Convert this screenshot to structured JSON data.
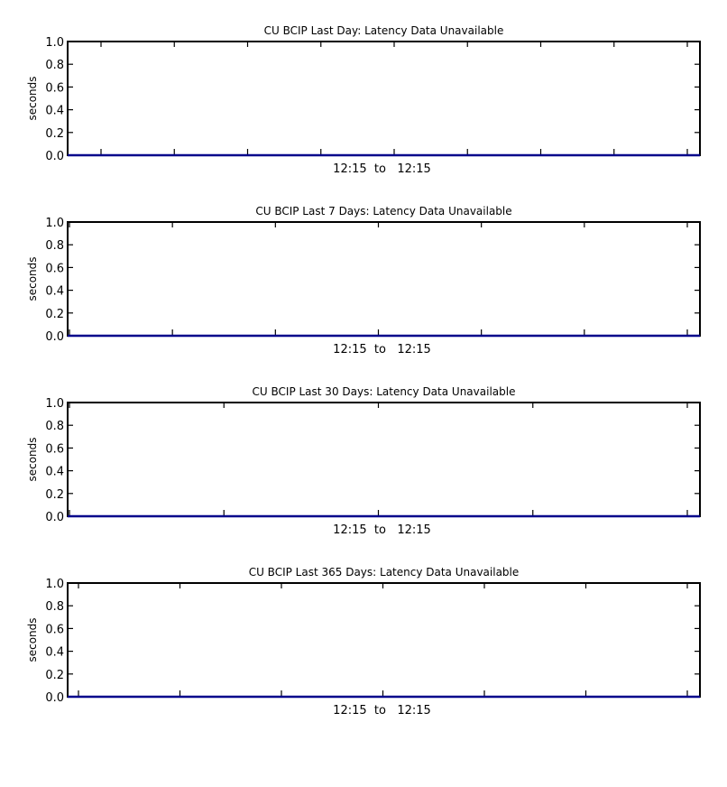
{
  "chart_data": [
    {
      "type": "line",
      "title": "CU BCIP Last Day: Latency Data Unavailable",
      "xlabel": "12:15  to   12:15",
      "ylabel": "seconds",
      "ylim": [
        0,
        1.0
      ],
      "y_ticks": [
        "0.0",
        "0.2",
        "0.4",
        "0.6",
        "0.8",
        "1.0"
      ],
      "x_major_ticks": 9,
      "grid": false,
      "series": [
        {
          "values": [
            0,
            0
          ]
        }
      ]
    },
    {
      "type": "line",
      "title": "CU BCIP Last 7 Days: Latency Data Unavailable",
      "xlabel": "12:15  to   12:15",
      "ylabel": "seconds",
      "ylim": [
        0,
        1.0
      ],
      "y_ticks": [
        "0.0",
        "0.2",
        "0.4",
        "0.6",
        "0.8",
        "1.0"
      ],
      "x_major_ticks": 7,
      "grid": false,
      "series": [
        {
          "values": [
            0,
            0
          ]
        }
      ]
    },
    {
      "type": "line",
      "title": "CU BCIP Last 30 Days: Latency Data Unavailable",
      "xlabel": "12:15  to   12:15",
      "ylabel": "seconds",
      "ylim": [
        0,
        1.0
      ],
      "y_ticks": [
        "0.0",
        "0.2",
        "0.4",
        "0.6",
        "0.8",
        "1.0"
      ],
      "x_major_ticks": 5,
      "grid": false,
      "series": [
        {
          "values": [
            0,
            0
          ]
        }
      ]
    },
    {
      "type": "line",
      "title": "CU BCIP Last 365 Days: Latency Data Unavailable",
      "xlabel": "12:15  to   12:15",
      "ylabel": "seconds",
      "ylim": [
        0,
        1.0
      ],
      "y_ticks": [
        "0.0",
        "0.2",
        "0.4",
        "0.6",
        "0.8",
        "1.0"
      ],
      "x_major_ticks": 7,
      "grid": false,
      "series": [
        {
          "values": [
            0,
            0
          ]
        }
      ]
    }
  ],
  "colors": {
    "axis": "#000000",
    "series": "#00008b"
  }
}
